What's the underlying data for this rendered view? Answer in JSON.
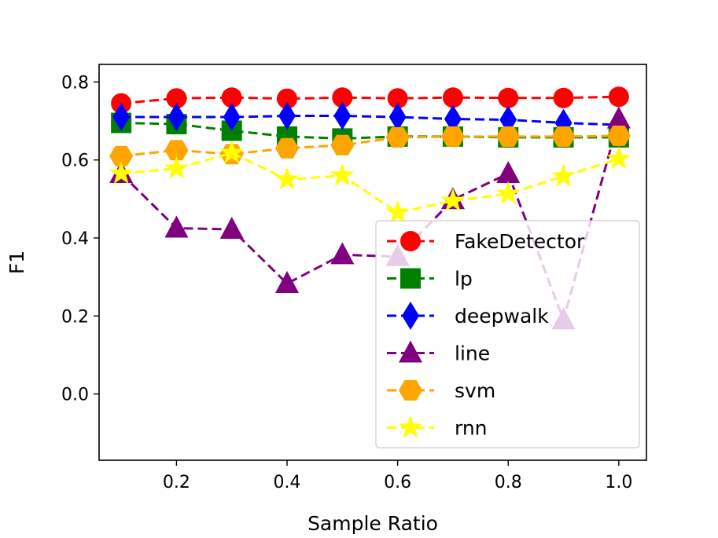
{
  "chart_data": {
    "type": "line",
    "title": "",
    "xlabel": "Sample Ratio",
    "ylabel": "F1",
    "xlim": [
      0.06,
      1.05
    ],
    "ylim": [
      -0.17,
      0.845
    ],
    "xticks": [
      0.2,
      0.4,
      0.6,
      0.8,
      1.0
    ],
    "xtick_labels": [
      "0.2",
      "0.4",
      "0.6",
      "0.8",
      "1.0"
    ],
    "yticks": [
      0.0,
      0.2,
      0.4,
      0.6,
      0.8
    ],
    "ytick_labels": [
      "0.0",
      "0.2",
      "0.4",
      "0.6",
      "0.8"
    ],
    "x": [
      0.1,
      0.2,
      0.3,
      0.4,
      0.5,
      0.6,
      0.7,
      0.8,
      0.9,
      1.0
    ],
    "legend_position": "lower-right",
    "series": [
      {
        "name": "FakeDetector",
        "color": "#ff0000",
        "marker": "circle",
        "values": [
          0.745,
          0.758,
          0.76,
          0.757,
          0.76,
          0.758,
          0.76,
          0.759,
          0.759,
          0.762
        ]
      },
      {
        "name": "lp",
        "color": "#008000",
        "marker": "square",
        "values": [
          0.695,
          0.692,
          0.675,
          0.66,
          0.655,
          0.66,
          0.66,
          0.658,
          0.658,
          0.658
        ]
      },
      {
        "name": "deepwalk",
        "color": "#0000ff",
        "marker": "diamond",
        "values": [
          0.71,
          0.71,
          0.71,
          0.713,
          0.713,
          0.71,
          0.705,
          0.703,
          0.695,
          0.69
        ]
      },
      {
        "name": "line",
        "color": "#800080",
        "marker": "triangle",
        "values": [
          0.565,
          0.425,
          0.422,
          0.283,
          0.357,
          0.352,
          0.498,
          0.565,
          0.19,
          0.705
        ]
      },
      {
        "name": "svm",
        "color": "#ffa500",
        "marker": "hexagon",
        "values": [
          0.61,
          0.625,
          0.615,
          0.63,
          0.638,
          0.658,
          0.66,
          0.66,
          0.66,
          0.662
        ]
      },
      {
        "name": "rnn",
        "color": "#ffff00",
        "marker": "star",
        "values": [
          0.565,
          0.578,
          0.618,
          0.55,
          0.56,
          0.465,
          0.495,
          0.513,
          0.558,
          0.603
        ]
      }
    ]
  }
}
